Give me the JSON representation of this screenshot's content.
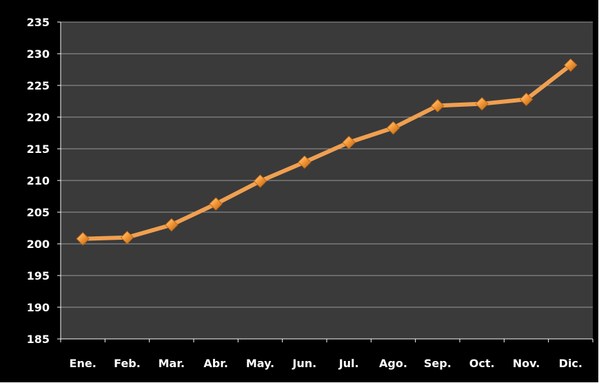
{
  "chart_data": {
    "type": "line",
    "title": "",
    "xlabel": "",
    "ylabel": "",
    "categories": [
      "Ene.",
      "Feb.",
      "Mar.",
      "Abr.",
      "May.",
      "Jun.",
      "Jul.",
      "Ago.",
      "Sep.",
      "Oct.",
      "Nov.",
      "Dic."
    ],
    "series": [
      {
        "values": [
          200.8,
          201.0,
          203.0,
          206.3,
          209.9,
          212.9,
          216.0,
          218.3,
          221.8,
          222.1,
          222.8,
          228.2
        ]
      }
    ],
    "ylim": [
      185,
      235
    ],
    "yticks": [
      185,
      190,
      195,
      200,
      205,
      210,
      215,
      220,
      225,
      230,
      235
    ],
    "grid": true,
    "legend": "none",
    "colors": {
      "frame": "#000000",
      "plot_background": "#3a3a3a",
      "gridline": "#9a9a9a",
      "line": "#f0a050",
      "marker": "#f08a20",
      "text": "#ffffff"
    }
  }
}
